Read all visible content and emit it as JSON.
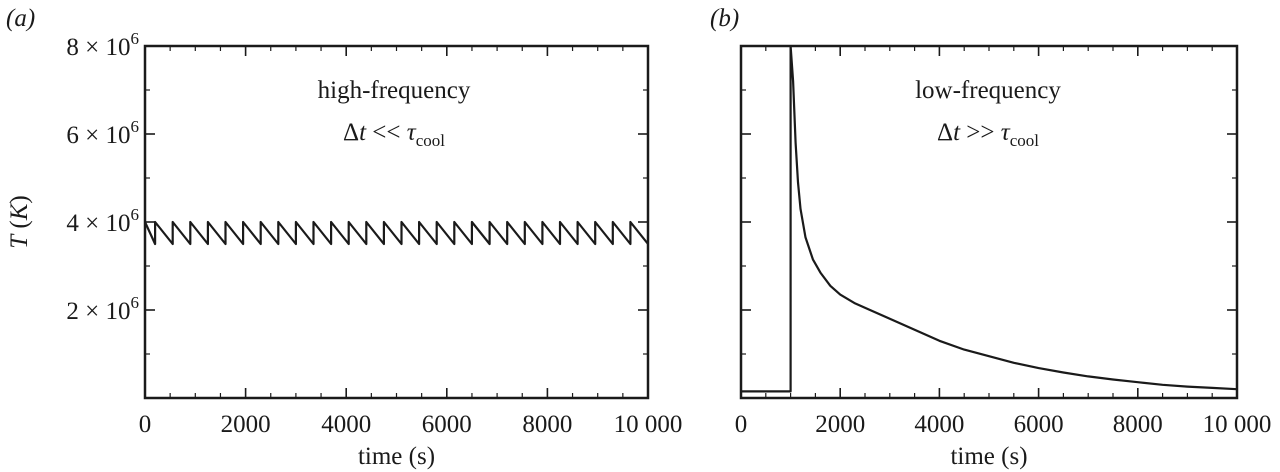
{
  "chart_data": [
    {
      "type": "line",
      "panel_label": "(a)",
      "annotation_line1": "high-frequency",
      "annotation_delta": "Δ",
      "annotation_t": "t",
      "annotation_op": " << ",
      "annotation_tau": "τ",
      "annotation_sub": "cool",
      "xlabel": "time (s)",
      "ylabel_italic": "T",
      "ylabel_rest": " (K)",
      "xlim": [
        0,
        10000
      ],
      "ylim": [
        0,
        8000000
      ],
      "x_ticks": [
        0,
        2000,
        4000,
        6000,
        8000,
        10000
      ],
      "x_tick_labels": [
        "0",
        "2000",
        "4000",
        "6000",
        "8000",
        "10 000"
      ],
      "y_ticks": [
        2000000,
        4000000,
        6000000,
        8000000
      ],
      "y_tick_mantissas": [
        "2",
        "4",
        "6",
        "8"
      ],
      "y_tick_base": "10",
      "y_tick_exp": "6",
      "series": [
        {
          "x": [
            0,
            200,
            200,
            550,
            550,
            900,
            900,
            1250,
            1250,
            1600,
            1600,
            1950,
            1950,
            2300,
            2300,
            2650,
            2650,
            3000,
            3000,
            3350,
            3350,
            3700,
            3700,
            4050,
            4050,
            4400,
            4400,
            4750,
            4750,
            5100,
            5100,
            5450,
            5450,
            5800,
            5800,
            6150,
            6150,
            6500,
            6500,
            6850,
            6850,
            7200,
            7200,
            7550,
            7550,
            7900,
            7900,
            8250,
            8250,
            8600,
            8600,
            8950,
            8950,
            9300,
            9300,
            9650,
            9650,
            10000
          ],
          "y": [
            4000000,
            3500000,
            4000000,
            3500000,
            4000000,
            3500000,
            4000000,
            3500000,
            4000000,
            3500000,
            4000000,
            3500000,
            4000000,
            3500000,
            4000000,
            3500000,
            4000000,
            3500000,
            4000000,
            3500000,
            4000000,
            3500000,
            4000000,
            3500000,
            4000000,
            3500000,
            4000000,
            3500000,
            4000000,
            3500000,
            4000000,
            3500000,
            4000000,
            3500000,
            4000000,
            3500000,
            4000000,
            3500000,
            4000000,
            3500000,
            4000000,
            3500000,
            4000000,
            3500000,
            4000000,
            3500000,
            4000000,
            3500000,
            4000000,
            3500000,
            4000000,
            3500000,
            4000000,
            3500000,
            4000000,
            3500000,
            4000000,
            3500000
          ]
        }
      ]
    },
    {
      "type": "line",
      "panel_label": "(b)",
      "annotation_line1": "low-frequency",
      "annotation_delta": "Δ",
      "annotation_t": "t",
      "annotation_op": " >> ",
      "annotation_tau": "τ",
      "annotation_sub": "cool",
      "xlabel": "time (s)",
      "xlim": [
        0,
        10000
      ],
      "ylim": [
        0,
        8000000
      ],
      "x_ticks": [
        0,
        2000,
        4000,
        6000,
        8000,
        10000
      ],
      "x_tick_labels": [
        "0",
        "2000",
        "4000",
        "6000",
        "8000",
        "10 000"
      ],
      "y_ticks": [
        2000000,
        4000000,
        6000000,
        8000000
      ],
      "series": [
        {
          "x": [
            0,
            1000,
            1000,
            1050,
            1100,
            1150,
            1200,
            1300,
            1450,
            1600,
            1800,
            2000,
            2300,
            2600,
            3000,
            3500,
            4000,
            4500,
            5000,
            5500,
            6000,
            6500,
            7000,
            7500,
            8000,
            8500,
            9000,
            9500,
            10000
          ],
          "y": [
            150000,
            150000,
            8000000,
            7200000,
            5800000,
            4900000,
            4300000,
            3650000,
            3150000,
            2850000,
            2550000,
            2350000,
            2150000,
            2000000,
            1800000,
            1550000,
            1300000,
            1100000,
            950000,
            800000,
            680000,
            580000,
            490000,
            420000,
            360000,
            300000,
            260000,
            230000,
            200000
          ]
        }
      ]
    }
  ]
}
